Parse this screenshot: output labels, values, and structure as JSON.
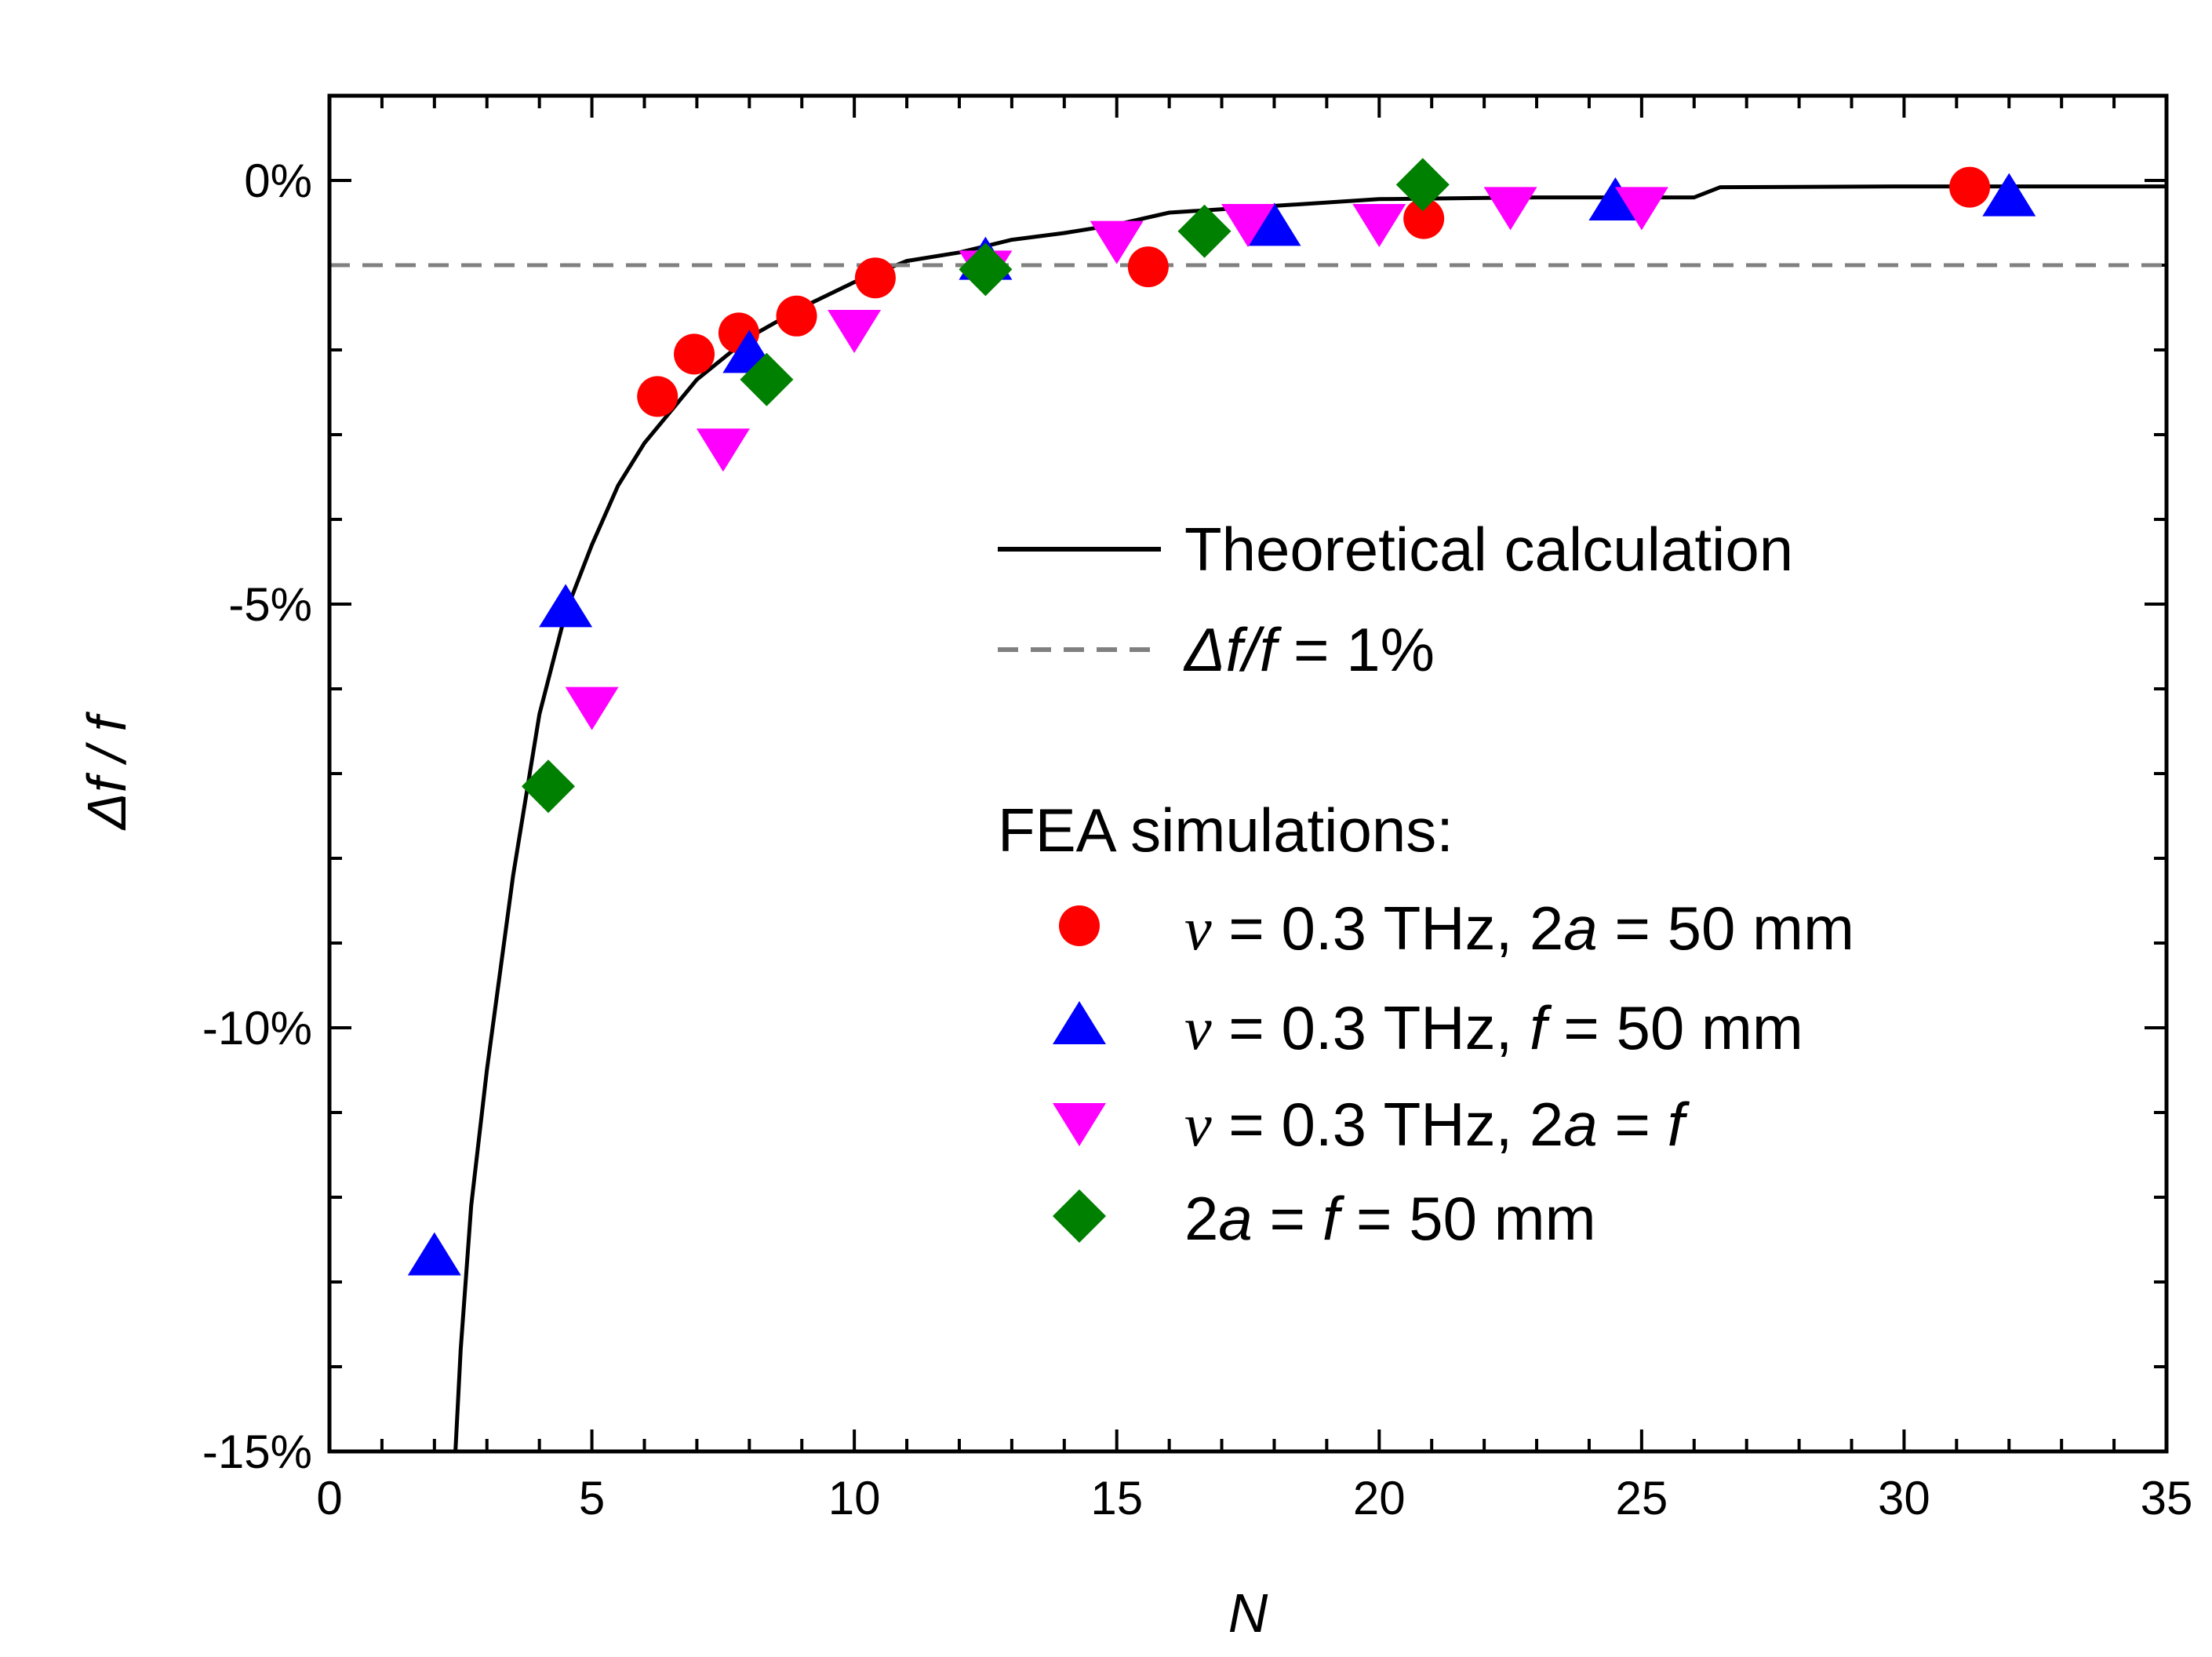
{
  "chart_data": {
    "type": "scatter",
    "xlabel": "N",
    "ylabel": "Δf / f",
    "xlim": [
      0,
      35
    ],
    "ylim": [
      -15,
      1
    ],
    "x_ticks": [
      0,
      5,
      10,
      15,
      20,
      25,
      30,
      35
    ],
    "x_tick_labels": [
      "0",
      "5",
      "10",
      "15",
      "20",
      "25",
      "30",
      "35"
    ],
    "y_ticks": [
      0,
      -5,
      -10,
      -15
    ],
    "y_tick_labels": [
      "0%",
      "-5%",
      "-10%",
      "-15%"
    ],
    "y_unit": "%",
    "grid": false,
    "legend_position": "right-middle",
    "reference_line": {
      "y": -1,
      "style": "dashed",
      "color": "#808080",
      "legend": {
        "prefix_italic": "Δf/f",
        "suffix": " = 1%"
      }
    },
    "theory": {
      "name": "Theoretical calculation",
      "style": "solid",
      "color": "#000000",
      "x": [
        2.4,
        2.5,
        2.7,
        3.0,
        3.5,
        4.0,
        4.5,
        5.0,
        5.5,
        6.0,
        7.0,
        8.0,
        9.0,
        10.0,
        11.0,
        12.0,
        13.0,
        14.0,
        15.0,
        16.0,
        18.0,
        20.0,
        23.0,
        26.0,
        26.5,
        30.0,
        35.0
      ],
      "y": [
        -15.0,
        -13.8,
        -12.1,
        -10.5,
        -8.2,
        -6.3,
        -5.1,
        -4.3,
        -3.6,
        -3.1,
        -2.35,
        -1.85,
        -1.5,
        -1.2,
        -0.95,
        -0.85,
        -0.7,
        -0.62,
        -0.52,
        -0.38,
        -0.3,
        -0.22,
        -0.2,
        -0.2,
        -0.08,
        -0.07,
        -0.07
      ]
    },
    "legend_header": "FEA simulations:",
    "series": [
      {
        "marker": "circle",
        "color": "#ff0000",
        "legend_parts": [
          {
            "text": "ν",
            "style": "nu"
          },
          {
            "text": " = 0.3 THz, 2",
            "style": "normal"
          },
          {
            "text": "a",
            "style": "italic"
          },
          {
            "text": " = 50 mm",
            "style": "normal"
          }
        ],
        "x": [
          6.25,
          6.95,
          7.8,
          8.9,
          10.4,
          15.6,
          20.85,
          31.25
        ],
        "y": [
          -2.55,
          -2.05,
          -1.8,
          -1.6,
          -1.15,
          -1.02,
          -0.45,
          -0.08
        ]
      },
      {
        "marker": "triangle-up",
        "color": "#0000ff",
        "legend_parts": [
          {
            "text": "ν",
            "style": "nu"
          },
          {
            "text": " = 0.3 THz, ",
            "style": "normal"
          },
          {
            "text": "f",
            "style": "italic"
          },
          {
            "text": " = 50 mm",
            "style": "normal"
          }
        ],
        "x": [
          2.0,
          4.5,
          8.0,
          12.5,
          18.0,
          24.5,
          32.0
        ],
        "y": [
          -12.7,
          -5.05,
          -2.05,
          -0.95,
          -0.55,
          -0.25,
          -0.2
        ]
      },
      {
        "marker": "triangle-down",
        "color": "#ff00ff",
        "legend_parts": [
          {
            "text": "ν",
            "style": "nu"
          },
          {
            "text": " = 0.3 THz, 2",
            "style": "normal"
          },
          {
            "text": "a",
            "style": "italic"
          },
          {
            "text": " = ",
            "style": "normal"
          },
          {
            "text": "f",
            "style": "italic"
          }
        ],
        "x": [
          5.0,
          7.5,
          10.0,
          12.5,
          15.0,
          17.5,
          20.0,
          22.5,
          25.0
        ],
        "y": [
          -6.2,
          -3.15,
          -1.75,
          -1.05,
          -0.7,
          -0.5,
          -0.5,
          -0.3,
          -0.3
        ]
      },
      {
        "marker": "diamond",
        "color": "#008000",
        "legend_parts": [
          {
            "text": "2",
            "style": "normal"
          },
          {
            "text": "a",
            "style": "italic"
          },
          {
            "text": " = ",
            "style": "normal"
          },
          {
            "text": "f",
            "style": "italic"
          },
          {
            "text": " = 50 mm",
            "style": "normal"
          }
        ],
        "x": [
          4.17,
          8.33,
          12.5,
          16.67,
          20.83
        ],
        "y": [
          -7.15,
          -2.35,
          -1.05,
          -0.6,
          -0.05
        ]
      }
    ]
  }
}
